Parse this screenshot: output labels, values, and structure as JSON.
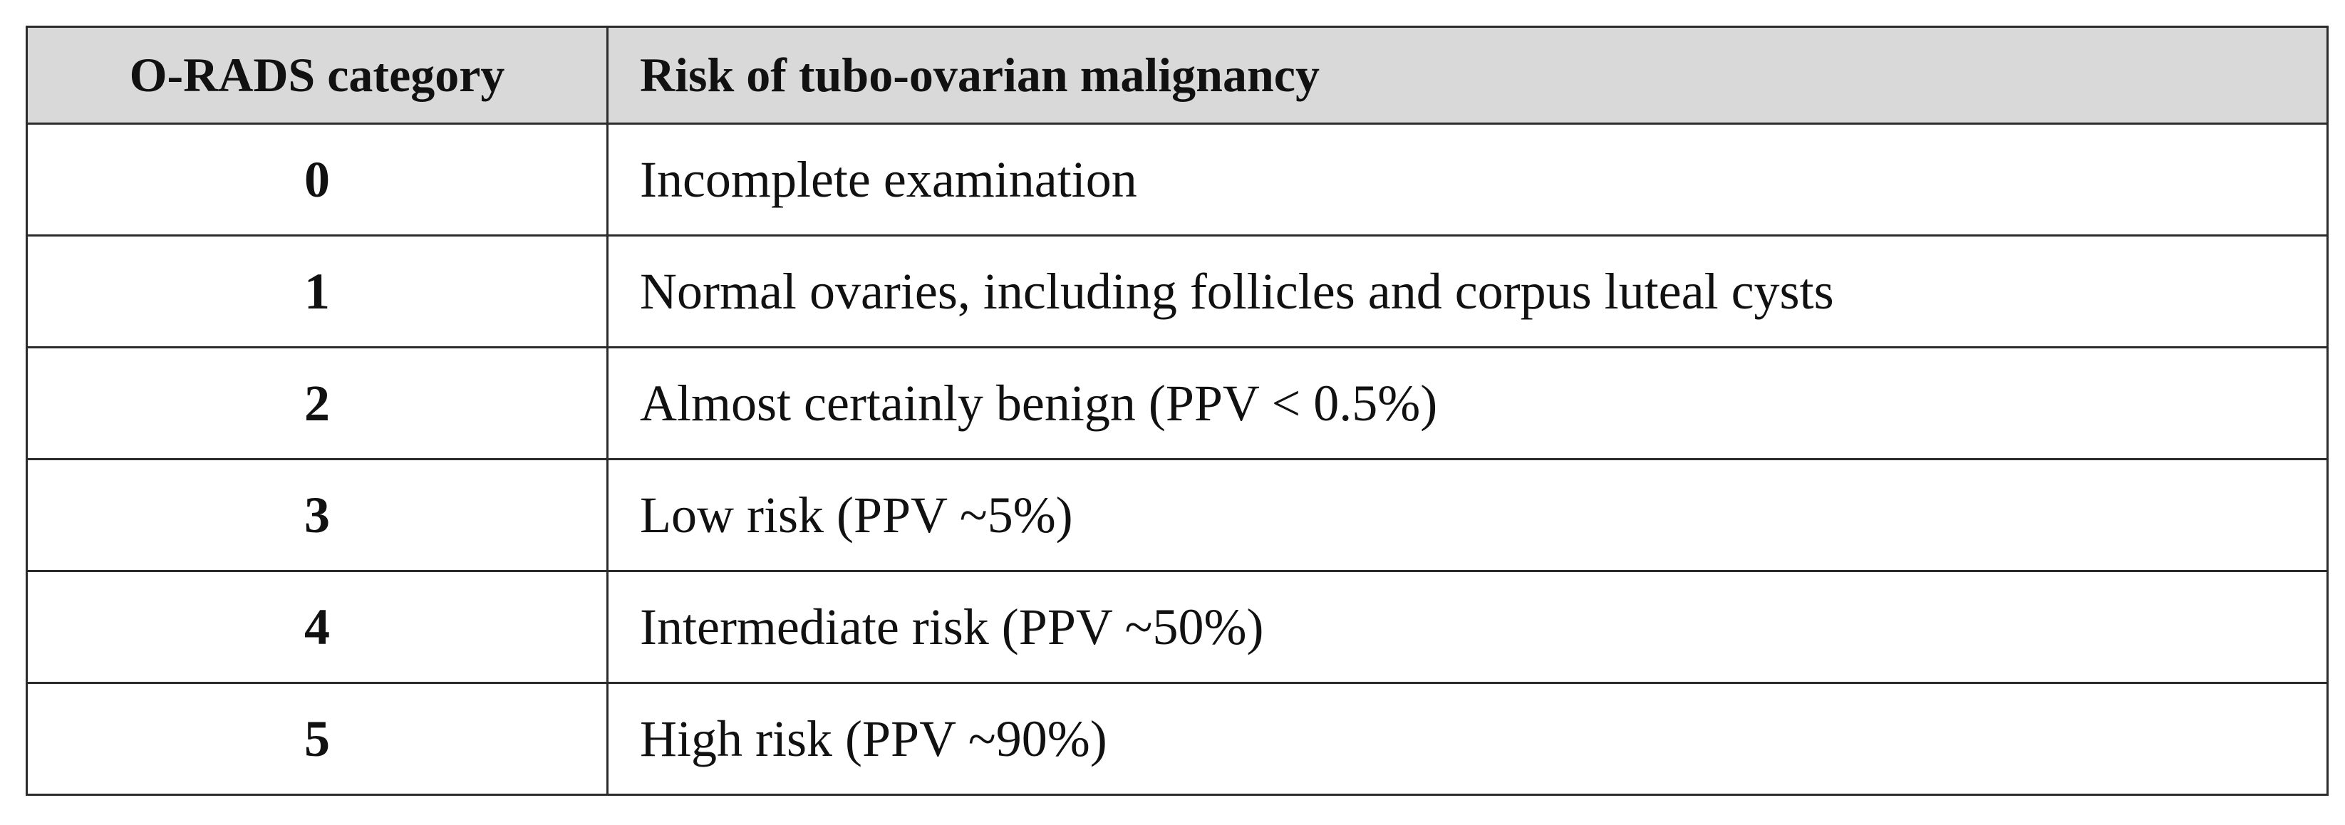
{
  "table": {
    "columns": [
      "O-RADS category",
      "Risk of tubo-ovarian malignancy"
    ],
    "rows": [
      [
        "0",
        "Incomplete examination"
      ],
      [
        "1",
        "Normal ovaries, including follicles and corpus luteal cysts"
      ],
      [
        "2",
        "Almost certainly benign (PPV < 0.5%)"
      ],
      [
        "3",
        "Low risk (PPV ~5%)"
      ],
      [
        "4",
        "Intermediate risk (PPV ~50%)"
      ],
      [
        "5",
        "High risk (PPV ~90%)"
      ]
    ]
  }
}
